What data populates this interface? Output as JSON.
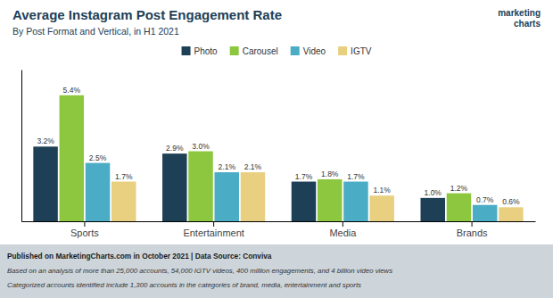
{
  "chart_data": {
    "type": "bar",
    "title": "Average Instagram Post Engagement Rate",
    "subtitle": "By Post Format and Vertical, in H1 2021",
    "categories": [
      "Sports",
      "Entertainment",
      "Media",
      "Brands"
    ],
    "series": [
      {
        "name": "Photo",
        "color": "#1d4056",
        "values": [
          3.2,
          2.9,
          1.7,
          1.0
        ],
        "value_labels": [
          "3.2%",
          "2.9%",
          "1.7%",
          "1.0%"
        ]
      },
      {
        "name": "Carousel",
        "color": "#8dc63f",
        "values": [
          5.4,
          3.0,
          1.8,
          1.2
        ],
        "value_labels": [
          "5.4%",
          "3.0%",
          "1.8%",
          "1.2%"
        ]
      },
      {
        "name": "Video",
        "color": "#4bacc6",
        "values": [
          2.5,
          2.1,
          1.7,
          0.7
        ],
        "value_labels": [
          "2.5%",
          "2.1%",
          "1.7%",
          "0.7%"
        ]
      },
      {
        "name": "IGTV",
        "color": "#e8d080",
        "values": [
          1.7,
          2.1,
          1.1,
          0.6
        ],
        "value_labels": [
          "1.7%",
          "2.1%",
          "1.1%",
          "0.6%"
        ]
      }
    ],
    "ylim": [
      0,
      6.5
    ],
    "grid": false,
    "legend": "top",
    "data_labels": true,
    "tick_labels": "x",
    "annotations": [
      "marketing",
      "charts",
      "Published on MarketingCharts.com in October 2021 | Data Source: Conviva",
      "Based on an analysis of more than 25,000 accounts, 54,000 IGTV videos, 400 million engagements, and 4 billion video views",
      "Categorized accounts identified include 1,300 accounts in the categories of brand, media, entertainment and sports"
    ]
  }
}
